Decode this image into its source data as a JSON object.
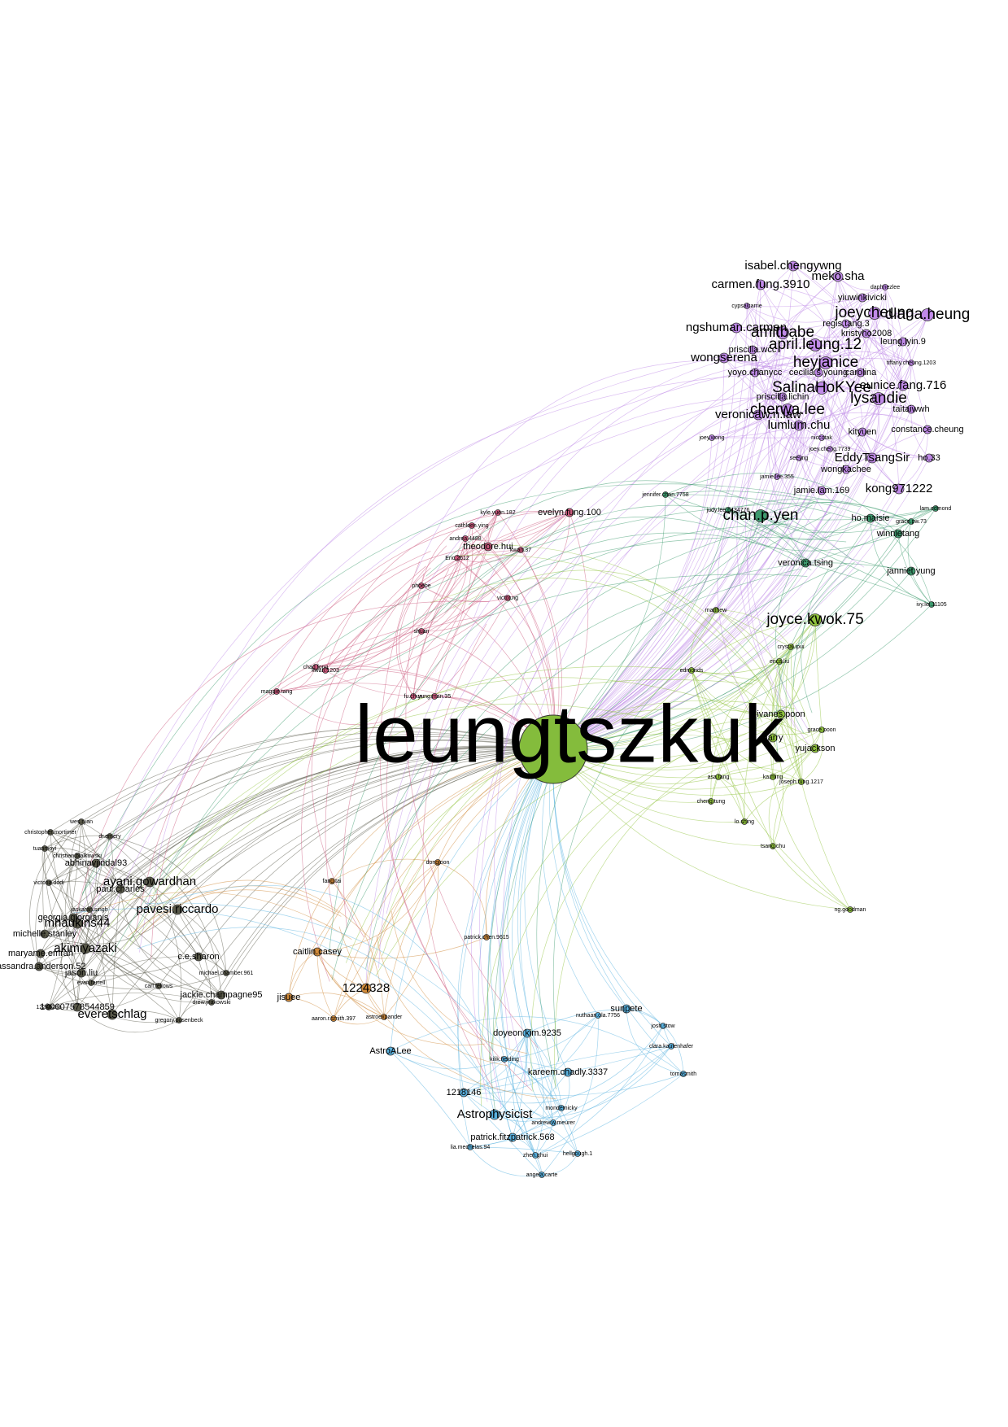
{
  "graph": {
    "hub": {
      "id": "leungtszkuk",
      "label": "leungtszkuk"
    },
    "colors": {
      "purple": "#c08ae8",
      "pink": "#cc5a7e",
      "green": "#8fc23c",
      "teal": "#3d9a6e",
      "olive": "#8a9a3a",
      "orange": "#d08a3a",
      "blue": "#59b2e0",
      "dark": "#5a5a4a",
      "hub": "#84bc3c"
    },
    "clusters": [
      {
        "id": "purple",
        "color": "purple",
        "nodes": [
          {
            "label": "isabel.chengywng",
            "size": "l"
          },
          {
            "label": "meko.sha",
            "size": "l"
          },
          {
            "label": "carmen.fung.3910",
            "size": "l"
          },
          {
            "label": "daphnezlee",
            "size": "s"
          },
          {
            "label": "yiuwinkivicki",
            "size": "m"
          },
          {
            "label": "joeycheung",
            "size": "xl"
          },
          {
            "label": "diana.heung",
            "size": "xl"
          },
          {
            "label": "cypsalcarrie",
            "size": "s"
          },
          {
            "label": "ngshuman.carmen",
            "size": "l"
          },
          {
            "label": "amitbabe",
            "size": "xl"
          },
          {
            "label": "regis.tang.3",
            "size": "m"
          },
          {
            "label": "kristyho2008",
            "size": "m"
          },
          {
            "label": "april.leung.12",
            "size": "xl"
          },
          {
            "label": "leung.lyin.9",
            "size": "m"
          },
          {
            "label": "priscilla.wcc",
            "size": "m"
          },
          {
            "label": "wongserena",
            "size": "l"
          },
          {
            "label": "heyjanice",
            "size": "xl"
          },
          {
            "label": "tiffany.cheung.1203",
            "size": "s"
          },
          {
            "label": "yoyo.chanycc",
            "size": "m"
          },
          {
            "label": "cecilia.s.young",
            "size": "m"
          },
          {
            "label": "carolina",
            "size": "m"
          },
          {
            "label": "SalinaHoKYee",
            "size": "xl"
          },
          {
            "label": "eunice.fang.716",
            "size": "l"
          },
          {
            "label": "priscilla.lichin",
            "size": "m"
          },
          {
            "label": "lysandie",
            "size": "xl"
          },
          {
            "label": "cherwa.lee",
            "size": "xl"
          },
          {
            "label": "taitaiwwh",
            "size": "m"
          },
          {
            "label": "veronicaw.n.law",
            "size": "l"
          },
          {
            "label": "lumlum.chu",
            "size": "l"
          },
          {
            "label": "constance.cheung",
            "size": "m"
          },
          {
            "label": "kityuen",
            "size": "m"
          },
          {
            "label": "joey.wong",
            "size": "s"
          },
          {
            "label": "niccotak",
            "size": "s"
          },
          {
            "label": "joey.cheng.7739",
            "size": "s"
          },
          {
            "label": "EddyTsangSir",
            "size": "l"
          },
          {
            "label": "ho.33",
            "size": "m"
          },
          {
            "label": "seeyng",
            "size": "s"
          },
          {
            "label": "wongkachee",
            "size": "m"
          },
          {
            "label": "jamie.lee.355",
            "size": "s"
          },
          {
            "label": "jamie.lam.169",
            "size": "m"
          },
          {
            "label": "kong971222",
            "size": "l"
          }
        ]
      },
      {
        "id": "teal",
        "color": "teal",
        "nodes": [
          {
            "label": "chan.p.yen",
            "size": "xl"
          },
          {
            "label": "judy.lee.6434776",
            "size": "s"
          },
          {
            "label": "lam.edmond",
            "size": "s"
          },
          {
            "label": "grace.pw.73",
            "size": "s"
          },
          {
            "label": "winnietang",
            "size": "m"
          },
          {
            "label": "veronica.tsing",
            "size": "m"
          },
          {
            "label": "janniet.yung",
            "size": "m"
          },
          {
            "label": "ivy.lei.11105",
            "size": "s"
          },
          {
            "label": "ho.maisie",
            "size": "m"
          },
          {
            "label": "jennifer.chan.7758",
            "size": "s"
          }
        ]
      },
      {
        "id": "green",
        "color": "green",
        "nodes": [
          {
            "label": "joyce.kwok.75",
            "size": "xl"
          },
          {
            "label": "crystal.ipui",
            "size": "s"
          },
          {
            "label": "erica.liu",
            "size": "s"
          },
          {
            "label": "ivanes.poon",
            "size": "m"
          },
          {
            "label": "grace.poon",
            "size": "s"
          },
          {
            "label": "harry",
            "size": "m"
          },
          {
            "label": "yujackson",
            "size": "m"
          },
          {
            "label": "edmonds",
            "size": "s"
          },
          {
            "label": "asa.tang",
            "size": "s"
          },
          {
            "label": "joseph.fung.1217",
            "size": "s"
          },
          {
            "label": "lo.shing",
            "size": "s"
          },
          {
            "label": "cheng.tung",
            "size": "s"
          },
          {
            "label": "ka.ming",
            "size": "s"
          },
          {
            "label": "tsang.chu",
            "size": "s"
          },
          {
            "label": "ng.goodman",
            "size": "s"
          },
          {
            "label": "matthew",
            "size": "s"
          }
        ]
      },
      {
        "id": "pink",
        "color": "pink",
        "nodes": [
          {
            "label": "evelyn.fung.100",
            "size": "m"
          },
          {
            "label": "theodore.hui",
            "size": "m"
          },
          {
            "label": "kwan.37",
            "size": "s"
          },
          {
            "label": "andrea.4488",
            "size": "s"
          },
          {
            "label": "cathleen.ying",
            "size": "s"
          },
          {
            "label": "kyle.yuen.182",
            "size": "s"
          },
          {
            "label": "Eric.2612",
            "size": "s"
          },
          {
            "label": "phoebe",
            "size": "s"
          },
          {
            "label": "victor.ng",
            "size": "s"
          },
          {
            "label": "shuan",
            "size": "s"
          },
          {
            "label": "chad.fong",
            "size": "s"
          },
          {
            "label": "kwan.1203",
            "size": "s"
          },
          {
            "label": "yung.man.35",
            "size": "s"
          },
          {
            "label": "fu.chun",
            "size": "s"
          },
          {
            "label": "maggie.tang",
            "size": "s"
          }
        ]
      },
      {
        "id": "orange",
        "color": "orange",
        "nodes": [
          {
            "label": "1224328",
            "size": "l"
          },
          {
            "label": "caitlin.casey",
            "size": "m"
          },
          {
            "label": "jisuee",
            "size": "m"
          },
          {
            "label": "patrick.chen.9615",
            "size": "s"
          },
          {
            "label": "astroexpander",
            "size": "s"
          },
          {
            "label": "aaron.r.smith.397",
            "size": "s"
          },
          {
            "label": "fang.tai",
            "size": "s"
          },
          {
            "label": "dongjoon",
            "size": "s"
          }
        ]
      },
      {
        "id": "blue",
        "color": "blue",
        "nodes": [
          {
            "label": "AstroALee",
            "size": "m"
          },
          {
            "label": "doyeon.kim.9235",
            "size": "m"
          },
          {
            "label": "Astrophysicist",
            "size": "l"
          },
          {
            "label": "patrick.fitzpatrick.568",
            "size": "m"
          },
          {
            "label": "1218146",
            "size": "m"
          },
          {
            "label": "kareem.chadly.3337",
            "size": "m"
          },
          {
            "label": "zhen.ghui",
            "size": "s"
          },
          {
            "label": "angela.carte",
            "size": "s"
          },
          {
            "label": "lia.mechelas.94",
            "size": "s"
          },
          {
            "label": "sunpete",
            "size": "m"
          },
          {
            "label": "nuthaan.ola.7756",
            "size": "s"
          },
          {
            "label": "andrew.w.meurer",
            "size": "s"
          },
          {
            "label": "hellgough.1",
            "size": "s"
          },
          {
            "label": "mondemicky",
            "size": "s"
          },
          {
            "label": "kilik.fielding",
            "size": "s"
          },
          {
            "label": "josh.stow",
            "size": "s"
          },
          {
            "label": "clara.kaufenhafer",
            "size": "s"
          },
          {
            "label": "tomasmith",
            "size": "s"
          }
        ]
      },
      {
        "id": "dark",
        "color": "dark",
        "nodes": [
          {
            "label": "ayani.gowardhan",
            "size": "l"
          },
          {
            "label": "pavesi.riccardo",
            "size": "l"
          },
          {
            "label": "akimiyazaki",
            "size": "l"
          },
          {
            "label": "mhaukins44",
            "size": "l"
          },
          {
            "label": "paul.charles",
            "size": "m"
          },
          {
            "label": "abhinavjindal93",
            "size": "m"
          },
          {
            "label": "christopher.mortimer",
            "size": "s"
          },
          {
            "label": "tuanmoyi",
            "size": "s"
          },
          {
            "label": "christian.bialkowski",
            "size": "s"
          },
          {
            "label": "victoria.dodi",
            "size": "s"
          },
          {
            "label": "georgia.giorgianis",
            "size": "m"
          },
          {
            "label": "michelle.stanley",
            "size": "m"
          },
          {
            "label": "maryame.emrah",
            "size": "m"
          },
          {
            "label": "cassandra.anderson.52",
            "size": "m"
          },
          {
            "label": "jason.liu",
            "size": "m"
          },
          {
            "label": "c.e.sharon",
            "size": "m"
          },
          {
            "label": "michael.chamber.961",
            "size": "s"
          },
          {
            "label": "jackie.champagne95",
            "size": "m"
          },
          {
            "label": "100007578544859",
            "size": "m"
          },
          {
            "label": "everetschlag",
            "size": "l"
          },
          {
            "label": "gregory.pusenbeck",
            "size": "s"
          },
          {
            "label": "drew.jirakowski",
            "size": "s"
          },
          {
            "label": "carl.fellows",
            "size": "s"
          },
          {
            "label": "evan.farrell",
            "size": "s"
          },
          {
            "label": "1224328b",
            "size": "s"
          },
          {
            "label": "jaskaran.singh",
            "size": "s"
          },
          {
            "label": "dr.emery",
            "size": "s"
          },
          {
            "label": "wes.ryan",
            "size": "s"
          }
        ]
      }
    ]
  }
}
